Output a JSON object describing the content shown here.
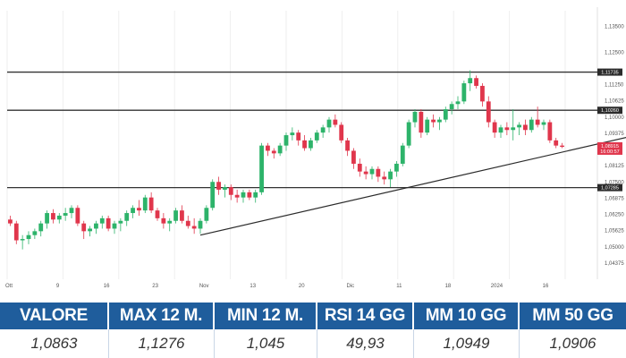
{
  "colors": {
    "up": "#2db36a",
    "down": "#e0364c",
    "accent": "#1f5d9c"
  },
  "chart_data": {
    "type": "candlestick",
    "title": "",
    "ylim": [
      1.0375,
      1.1375
    ],
    "yticks": [
      "1,13500",
      "1,12500",
      "1,11250",
      "1,10625",
      "1,10000",
      "1,09375",
      "1,08125",
      "1,07500",
      "1,06875",
      "1,06250",
      "1,05625",
      "1,05000",
      "1,04375"
    ],
    "xticks": [
      "Ott",
      "9",
      "16",
      "23",
      "Nov",
      "13",
      "20",
      "Dic",
      "11",
      "18",
      "2024",
      "16"
    ],
    "levels": [
      {
        "value": 1.1173,
        "label": "1,11735"
      },
      {
        "value": 1.1026,
        "label": "1,10260"
      },
      {
        "value": 1.0728,
        "label": "1,07285"
      }
    ],
    "current": {
      "value": 1.0889,
      "label": "1,08915",
      "sublabel": "16:00:57"
    },
    "trendline": {
      "from": {
        "x": 31,
        "y": 1.0545
      },
      "to": {
        "x": 103,
        "y": 1.0935
      }
    },
    "candles": [
      [
        1.0605,
        1.062,
        1.058,
        1.059
      ],
      [
        1.059,
        1.06,
        1.051,
        1.0525
      ],
      [
        1.0525,
        1.0545,
        1.049,
        1.053
      ],
      [
        1.053,
        1.056,
        1.051,
        1.0545
      ],
      [
        1.0545,
        1.057,
        1.053,
        1.056
      ],
      [
        1.056,
        1.06,
        1.054,
        1.059
      ],
      [
        1.059,
        1.064,
        1.057,
        1.063
      ],
      [
        1.063,
        1.0645,
        1.059,
        1.0605
      ],
      [
        1.0605,
        1.063,
        1.059,
        1.062
      ],
      [
        1.062,
        1.065,
        1.06,
        1.063
      ],
      [
        1.063,
        1.066,
        1.061,
        1.065
      ],
      [
        1.065,
        1.066,
        1.058,
        1.059
      ],
      [
        1.059,
        1.06,
        1.053,
        1.056
      ],
      [
        1.056,
        1.058,
        1.054,
        1.057
      ],
      [
        1.057,
        1.06,
        1.055,
        1.059
      ],
      [
        1.059,
        1.062,
        1.057,
        1.061
      ],
      [
        1.061,
        1.062,
        1.056,
        1.057
      ],
      [
        1.057,
        1.06,
        1.055,
        1.059
      ],
      [
        1.059,
        1.061,
        1.056,
        1.06
      ],
      [
        1.06,
        1.064,
        1.058,
        1.063
      ],
      [
        1.063,
        1.066,
        1.061,
        1.065
      ],
      [
        1.065,
        1.068,
        1.062,
        1.064
      ],
      [
        1.064,
        1.07,
        1.063,
        1.069
      ],
      [
        1.069,
        1.071,
        1.063,
        1.064
      ],
      [
        1.064,
        1.065,
        1.06,
        1.061
      ],
      [
        1.061,
        1.063,
        1.057,
        1.059
      ],
      [
        1.059,
        1.061,
        1.056,
        1.06
      ],
      [
        1.06,
        1.065,
        1.059,
        1.064
      ],
      [
        1.064,
        1.066,
        1.059,
        1.06
      ],
      [
        1.06,
        1.062,
        1.057,
        1.058
      ],
      [
        1.058,
        1.061,
        1.055,
        1.057
      ],
      [
        1.057,
        1.061,
        1.055,
        1.06
      ],
      [
        1.06,
        1.066,
        1.059,
        1.065
      ],
      [
        1.065,
        1.076,
        1.064,
        1.075
      ],
      [
        1.075,
        1.077,
        1.07,
        1.072
      ],
      [
        1.072,
        1.074,
        1.069,
        1.073
      ],
      [
        1.073,
        1.074,
        1.068,
        1.07
      ],
      [
        1.07,
        1.072,
        1.067,
        1.069
      ],
      [
        1.069,
        1.072,
        1.067,
        1.071
      ],
      [
        1.071,
        1.072,
        1.068,
        1.069
      ],
      [
        1.069,
        1.072,
        1.067,
        1.071
      ],
      [
        1.071,
        1.09,
        1.07,
        1.089
      ],
      [
        1.089,
        1.09,
        1.085,
        1.087
      ],
      [
        1.087,
        1.088,
        1.084,
        1.086
      ],
      [
        1.086,
        1.09,
        1.085,
        1.089
      ],
      [
        1.089,
        1.094,
        1.087,
        1.093
      ],
      [
        1.093,
        1.096,
        1.091,
        1.094
      ],
      [
        1.094,
        1.095,
        1.089,
        1.091
      ],
      [
        1.091,
        1.093,
        1.087,
        1.088
      ],
      [
        1.088,
        1.092,
        1.087,
        1.091
      ],
      [
        1.091,
        1.095,
        1.09,
        1.094
      ],
      [
        1.094,
        1.097,
        1.092,
        1.096
      ],
      [
        1.096,
        1.1,
        1.094,
        1.099
      ],
      [
        1.099,
        1.101,
        1.096,
        1.097
      ],
      [
        1.097,
        1.098,
        1.09,
        1.091
      ],
      [
        1.091,
        1.092,
        1.085,
        1.087
      ],
      [
        1.087,
        1.088,
        1.08,
        1.082
      ],
      [
        1.082,
        1.084,
        1.077,
        1.079
      ],
      [
        1.079,
        1.081,
        1.076,
        1.078
      ],
      [
        1.078,
        1.081,
        1.076,
        1.08
      ],
      [
        1.08,
        1.081,
        1.075,
        1.077
      ],
      [
        1.077,
        1.079,
        1.074,
        1.076
      ],
      [
        1.076,
        1.08,
        1.073,
        1.079
      ],
      [
        1.079,
        1.083,
        1.077,
        1.082
      ],
      [
        1.082,
        1.09,
        1.081,
        1.089
      ],
      [
        1.089,
        1.099,
        1.088,
        1.098
      ],
      [
        1.098,
        1.103,
        1.096,
        1.102
      ],
      [
        1.102,
        1.103,
        1.092,
        1.094
      ],
      [
        1.094,
        1.1,
        1.093,
        1.099
      ],
      [
        1.099,
        1.101,
        1.096,
        1.098
      ],
      [
        1.098,
        1.1,
        1.095,
        1.099
      ],
      [
        1.099,
        1.104,
        1.098,
        1.103
      ],
      [
        1.103,
        1.106,
        1.101,
        1.105
      ],
      [
        1.105,
        1.108,
        1.103,
        1.106
      ],
      [
        1.106,
        1.114,
        1.105,
        1.113
      ],
      [
        1.113,
        1.118,
        1.11,
        1.115
      ],
      [
        1.115,
        1.116,
        1.111,
        1.112
      ],
      [
        1.112,
        1.113,
        1.104,
        1.106
      ],
      [
        1.106,
        1.108,
        1.096,
        1.098
      ],
      [
        1.098,
        1.099,
        1.092,
        1.094
      ],
      [
        1.094,
        1.097,
        1.092,
        1.096
      ],
      [
        1.096,
        1.098,
        1.093,
        1.095
      ],
      [
        1.095,
        1.103,
        1.091,
        1.096
      ],
      [
        1.096,
        1.098,
        1.093,
        1.097
      ],
      [
        1.097,
        1.099,
        1.093,
        1.095
      ],
      [
        1.095,
        1.1,
        1.094,
        1.099
      ],
      [
        1.099,
        1.104,
        1.096,
        1.097
      ],
      [
        1.097,
        1.099,
        1.095,
        1.098
      ],
      [
        1.098,
        1.099,
        1.09,
        1.091
      ],
      [
        1.091,
        1.092,
        1.088,
        1.089
      ],
      [
        1.089,
        1.09,
        1.088,
        1.0885
      ]
    ]
  },
  "stats": {
    "headers": [
      "VALORE",
      "MAX 12 M.",
      "MIN 12 M.",
      "RSI 14 GG",
      "MM 10 GG",
      "MM 50 GG"
    ],
    "values": [
      "1,0863",
      "1,1276",
      "1,045",
      "49,93",
      "1,0949",
      "1,0906"
    ]
  }
}
